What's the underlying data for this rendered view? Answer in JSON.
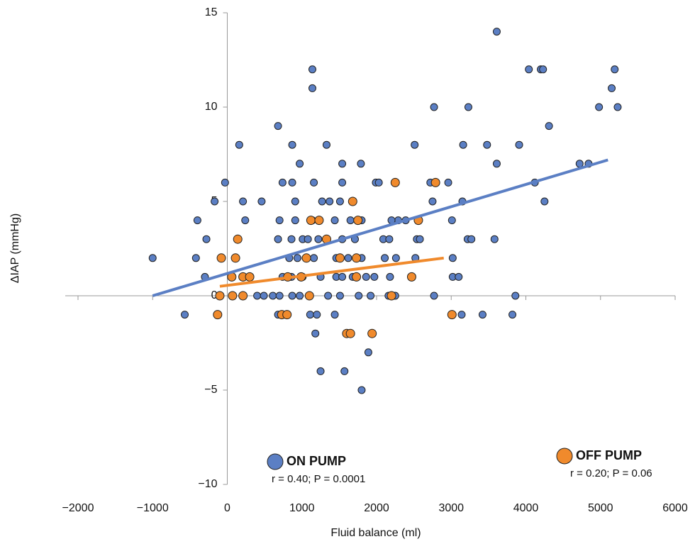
{
  "chart_data": {
    "type": "scatter",
    "xlabel": "Fluid balance (ml)",
    "ylabel": "ΔIAP (mmHg)",
    "xlim": [
      -2000,
      6000
    ],
    "xticks": [
      {
        "value": -2000,
        "label": "−2000"
      },
      {
        "value": -1000,
        "label": "−1000"
      },
      0,
      1000,
      2000,
      3000,
      4000,
      5000,
      6000
    ],
    "ylim": [
      -10,
      15
    ],
    "yticks": [
      {
        "value": -10,
        "label": "−10"
      },
      {
        "value": -5,
        "label": "−5"
      },
      0,
      5,
      10,
      15
    ],
    "series": [
      {
        "name": "ON PUMP",
        "color": "#5b7fc4",
        "stat": "r = 0.40; P = 0.0001",
        "x": [
          -1000,
          -570,
          -420,
          -400,
          -300,
          -280,
          -170,
          -30,
          160,
          210,
          240,
          460,
          680,
          870,
          970,
          1330,
          1140,
          1140,
          1540,
          1790,
          2510,
          2770,
          3230,
          3610,
          3160,
          3480,
          3610,
          3910,
          4040,
          4200,
          4230,
          4310,
          4250,
          4120,
          4720,
          4840,
          4980,
          5150,
          5190,
          5230,
          3580,
          3820,
          3860,
          3420,
          3140,
          2770,
          3020,
          3020,
          3100,
          3220,
          3270,
          3010,
          3150,
          2750,
          2960,
          2720,
          2290,
          2390,
          2540,
          2580,
          2260,
          2520,
          1990,
          2030,
          2200,
          2090,
          2170,
          2110,
          2180,
          1860,
          1970,
          1680,
          1760,
          1920,
          2160,
          2250,
          1600,
          1890,
          1800,
          1250,
          1570,
          1180,
          1110,
          1200,
          1440,
          680,
          740,
          400,
          490,
          610,
          700,
          870,
          970,
          1350,
          1510,
          740,
          860,
          1010,
          1250,
          1460,
          1540,
          830,
          940,
          1050,
          1160,
          1460,
          1620,
          1800,
          680,
          860,
          1010,
          1080,
          1220,
          1540,
          1710,
          700,
          910,
          1140,
          1440,
          1650,
          1800,
          910,
          1270,
          1370,
          1510,
          740,
          870,
          1160,
          1540
        ],
        "values": [
          2,
          -1,
          2,
          4,
          1,
          3,
          5,
          6,
          8,
          5,
          4,
          5,
          9,
          8,
          7,
          8,
          12,
          11,
          7,
          7,
          8,
          10,
          10,
          14,
          8,
          8,
          7,
          8,
          12,
          12,
          12,
          9,
          5,
          6,
          7,
          7,
          10,
          11,
          12,
          10,
          3,
          -1,
          0,
          -1,
          -1,
          0,
          2,
          1,
          1,
          3,
          3,
          4,
          5,
          5,
          6,
          6,
          4,
          4,
          3,
          3,
          2,
          2,
          6,
          6,
          4,
          3,
          3,
          2,
          1,
          1,
          1,
          1,
          0,
          0,
          0,
          0,
          -2,
          -3,
          -5,
          -4,
          -4,
          -2,
          -1,
          -1,
          -1,
          -1,
          -1,
          0,
          0,
          0,
          0,
          0,
          0,
          0,
          0,
          1,
          1,
          1,
          1,
          1,
          1,
          2,
          2,
          2,
          2,
          2,
          2,
          2,
          3,
          3,
          3,
          3,
          3,
          3,
          3,
          4,
          4,
          4,
          4,
          4,
          4,
          5,
          5,
          5,
          5,
          6,
          6,
          6,
          6
        ],
        "trend_x": [
          -1000,
          5100
        ],
        "trend_values": [
          0,
          7.2
        ]
      },
      {
        "name": "OFF PUMP",
        "color": "#f08a2c",
        "stat": "r = 0.20; P = 0.06",
        "x": [
          -130,
          -80,
          -100,
          70,
          110,
          140,
          210,
          210,
          300,
          60,
          730,
          800,
          810,
          990,
          1120,
          1230,
          1330,
          1100,
          1060,
          1510,
          1680,
          1750,
          1600,
          1650,
          1940,
          1730,
          2200,
          2250,
          2470,
          2560,
          2790,
          3010,
          1730
        ],
        "values": [
          -1,
          2,
          0,
          0,
          2,
          3,
          1,
          0,
          1,
          1,
          -1,
          -1,
          1,
          1,
          4,
          4,
          3,
          0,
          2,
          2,
          5,
          4,
          -2,
          -2,
          -2,
          1,
          0,
          6,
          1,
          4,
          6,
          -1,
          2
        ],
        "trend_x": [
          -100,
          2900
        ],
        "trend_values": [
          0.5,
          2.0
        ]
      }
    ]
  }
}
